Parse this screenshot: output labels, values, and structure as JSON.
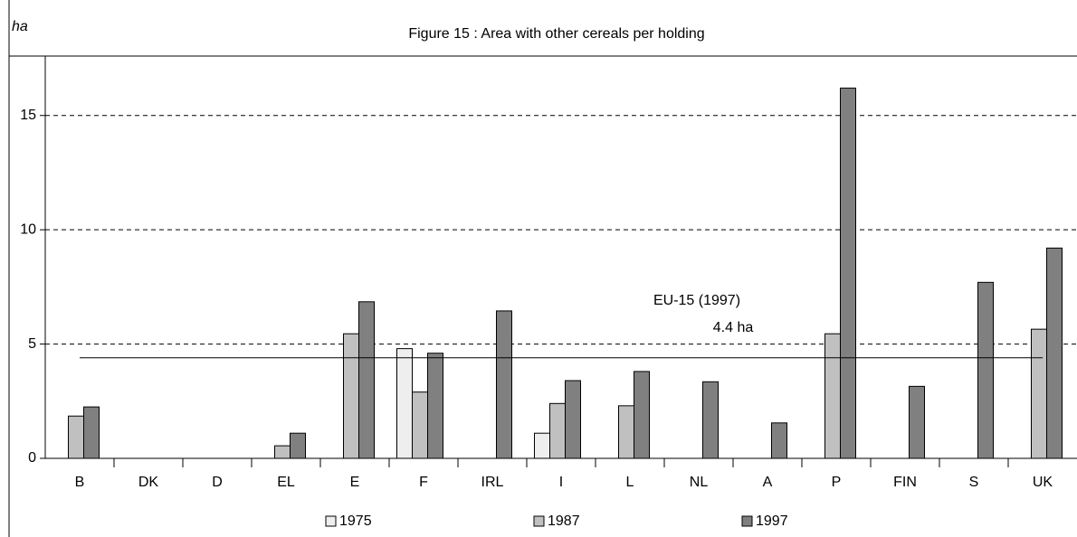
{
  "chart_data": {
    "type": "bar",
    "title": "Figure 15 : Area with other cereals per holding",
    "y_label": "ha",
    "categories": [
      "B",
      "DK",
      "D",
      "EL",
      "E",
      "F",
      "IRL",
      "I",
      "L",
      "NL",
      "A",
      "P",
      "FIN",
      "S",
      "UK"
    ],
    "series": [
      {
        "name": "1975",
        "color": "#eeeeee",
        "values": [
          null,
          null,
          null,
          null,
          null,
          4.8,
          null,
          1.1,
          null,
          null,
          null,
          null,
          null,
          null,
          null
        ]
      },
      {
        "name": "1987",
        "color": "#c0c0c0",
        "values": [
          1.85,
          null,
          null,
          0.55,
          5.45,
          2.9,
          null,
          2.4,
          2.3,
          null,
          null,
          5.45,
          null,
          null,
          5.65
        ]
      },
      {
        "name": "1997",
        "color": "#808080",
        "values": [
          2.25,
          null,
          null,
          1.1,
          6.85,
          4.6,
          6.45,
          3.4,
          3.8,
          3.35,
          1.55,
          16.2,
          3.15,
          7.7,
          9.2
        ]
      }
    ],
    "reference_line": {
      "value": 4.4,
      "label": [
        "EU-15 (1997)",
        "4.4 ha"
      ]
    },
    "ylim": [
      0,
      17.6
    ],
    "yticks": [
      0,
      5,
      10,
      15
    ],
    "grid": true,
    "legend": "bottom"
  }
}
